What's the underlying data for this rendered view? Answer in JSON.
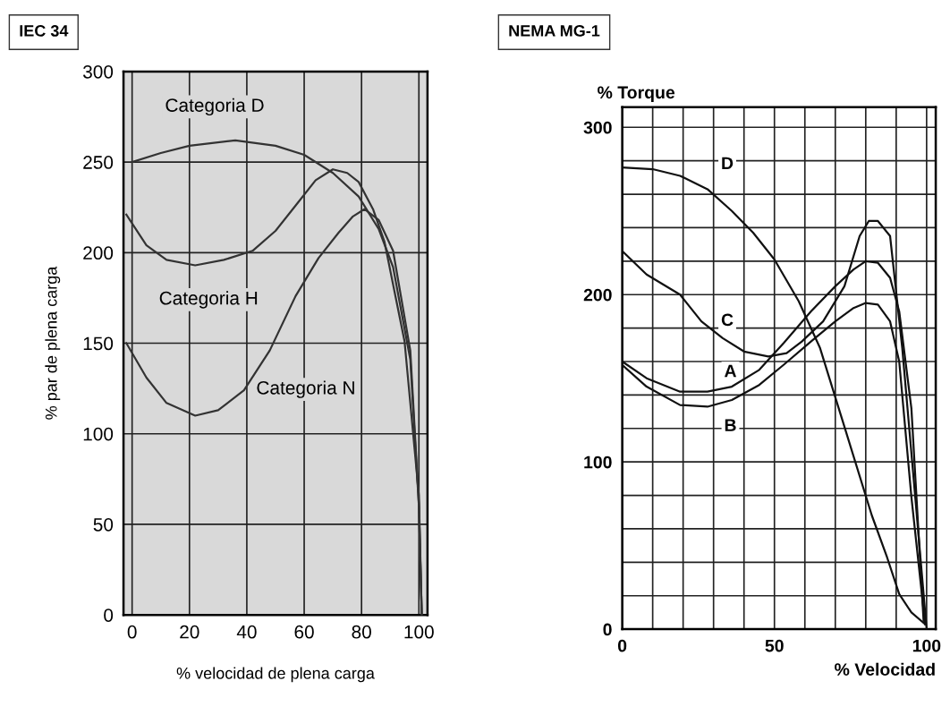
{
  "chart_data": [
    {
      "type": "line",
      "title": "IEC 34",
      "xlabel": "% velocidad de plena carga",
      "ylabel": "% par de plena carga",
      "xlim": [
        -3,
        103
      ],
      "ylim": [
        0,
        300
      ],
      "xticks": [
        0,
        20,
        40,
        60,
        80,
        100
      ],
      "yticks": [
        0,
        50,
        100,
        150,
        200,
        250,
        300
      ],
      "grid": true,
      "series": [
        {
          "color": "#333333",
          "x": [
            0,
            10,
            20,
            36,
            50,
            60,
            70,
            79,
            86,
            91,
            97,
            100,
            101
          ],
          "values": [
            250,
            255,
            259,
            262,
            259,
            254,
            244,
            231,
            213,
            192,
            141,
            60,
            0
          ]
        },
        {
          "color": "#333333",
          "x": [
            -2,
            5,
            12,
            22,
            32,
            42,
            50,
            57,
            64,
            70,
            75,
            79,
            84,
            88,
            95,
            100,
            101
          ],
          "values": [
            221,
            204,
            196,
            193,
            196,
            201,
            212,
            226,
            240,
            246,
            244,
            239,
            224,
            206,
            151,
            66,
            0
          ]
        },
        {
          "color": "#333333",
          "x": [
            -2,
            5,
            12,
            22,
            30,
            39,
            48,
            57,
            65,
            72,
            77,
            81,
            86,
            91,
            97,
            100,
            101
          ],
          "values": [
            150,
            131,
            117,
            110,
            113,
            124,
            146,
            176,
            197,
            211,
            220,
            224,
            218,
            201,
            146,
            61,
            0
          ]
        }
      ],
      "annotations": [
        "Categoria D",
        "Categoria H",
        "Categoria N"
      ]
    },
    {
      "type": "line",
      "title": "NEMA MG-1",
      "xlabel": "% Velocidad",
      "ylabel": "% Torque",
      "xlim": [
        0,
        103
      ],
      "ylim": [
        0,
        312
      ],
      "xticks": [
        0,
        {
          "value": 10,
          "label": null
        },
        {
          "value": 20,
          "label": null
        },
        {
          "value": 30,
          "label": null
        },
        {
          "value": 40,
          "label": null
        },
        50,
        {
          "value": 60,
          "label": null
        },
        {
          "value": 70,
          "label": null
        },
        {
          "value": 80,
          "label": null
        },
        {
          "value": 90,
          "label": null
        },
        100
      ],
      "yticks": [
        0,
        {
          "value": 20,
          "label": null
        },
        {
          "value": 40,
          "label": null
        },
        {
          "value": 60,
          "label": null
        },
        {
          "value": 80,
          "label": null
        },
        100,
        {
          "value": 120,
          "label": null
        },
        {
          "value": 140,
          "label": null
        },
        {
          "value": 160,
          "label": null
        },
        {
          "value": 180,
          "label": null
        },
        200,
        {
          "value": 220,
          "label": null
        },
        {
          "value": 240,
          "label": null
        },
        {
          "value": 260,
          "label": null
        },
        {
          "value": 280,
          "label": null
        },
        300
      ],
      "grid": true,
      "series": [
        {
          "color": "#111111",
          "x": [
            0,
            10,
            19,
            28,
            36,
            43,
            50,
            58,
            65,
            73,
            82,
            87,
            91,
            95,
            99.5
          ],
          "values": [
            276,
            275,
            271,
            263,
            250,
            237,
            221,
            196,
            168,
            121,
            68,
            43,
            21,
            10,
            3
          ]
        },
        {
          "color": "#111111",
          "x": [
            0,
            8,
            19,
            26,
            33,
            40,
            48,
            54,
            59,
            66,
            73,
            78,
            81,
            84,
            88,
            92,
            96.5,
            100
          ],
          "values": [
            226,
            212,
            200,
            184,
            174,
            166,
            163,
            165,
            172,
            184,
            205,
            235,
            244,
            244,
            235,
            168,
            74,
            0
          ]
        },
        {
          "color": "#111111",
          "x": [
            0,
            8,
            19,
            28,
            36,
            45,
            53,
            62,
            70,
            76,
            80,
            84,
            88,
            91,
            95,
            99
          ],
          "values": [
            160,
            150,
            142,
            142,
            145,
            155,
            171,
            190,
            205,
            215,
            220,
            219,
            210,
            190,
            132,
            5
          ]
        },
        {
          "color": "#111111",
          "x": [
            0,
            8,
            19,
            28,
            36,
            45,
            53,
            62,
            70,
            76,
            80,
            84,
            88,
            91,
            95,
            99.5
          ],
          "values": [
            158,
            145,
            134,
            133,
            137,
            146,
            158,
            172,
            184,
            192,
            195,
            194,
            184,
            160,
            79,
            3
          ]
        }
      ],
      "annotations": [
        "D",
        "C",
        "A",
        "B"
      ]
    }
  ]
}
